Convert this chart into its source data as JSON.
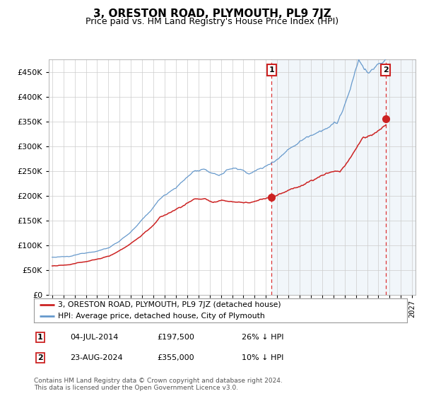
{
  "title": "3, ORESTON ROAD, PLYMOUTH, PL9 7JZ",
  "subtitle": "Price paid vs. HM Land Registry's House Price Index (HPI)",
  "ylim": [
    0,
    475000
  ],
  "yticks": [
    0,
    50000,
    100000,
    150000,
    200000,
    250000,
    300000,
    350000,
    400000,
    450000
  ],
  "ytick_labels": [
    "£0",
    "£50K",
    "£100K",
    "£150K",
    "£200K",
    "£250K",
    "£300K",
    "£350K",
    "£400K",
    "£450K"
  ],
  "xlim_start": 1994.7,
  "xlim_end": 2027.3,
  "sale1_date": 2014.5,
  "sale1_price": 197500,
  "sale1_label": "1",
  "sale2_date": 2024.64,
  "sale2_price": 355000,
  "sale2_label": "2",
  "hpi_color": "#6699cc",
  "price_color": "#cc2222",
  "dashed_color": "#dd3333",
  "legend_line1": "3, ORESTON ROAD, PLYMOUTH, PL9 7JZ (detached house)",
  "legend_line2": "HPI: Average price, detached house, City of Plymouth",
  "table_row1": [
    "1",
    "04-JUL-2014",
    "£197,500",
    "26% ↓ HPI"
  ],
  "table_row2": [
    "2",
    "23-AUG-2024",
    "£355,000",
    "10% ↓ HPI"
  ],
  "footnote": "Contains HM Land Registry data © Crown copyright and database right 2024.\nThis data is licensed under the Open Government Licence v3.0."
}
